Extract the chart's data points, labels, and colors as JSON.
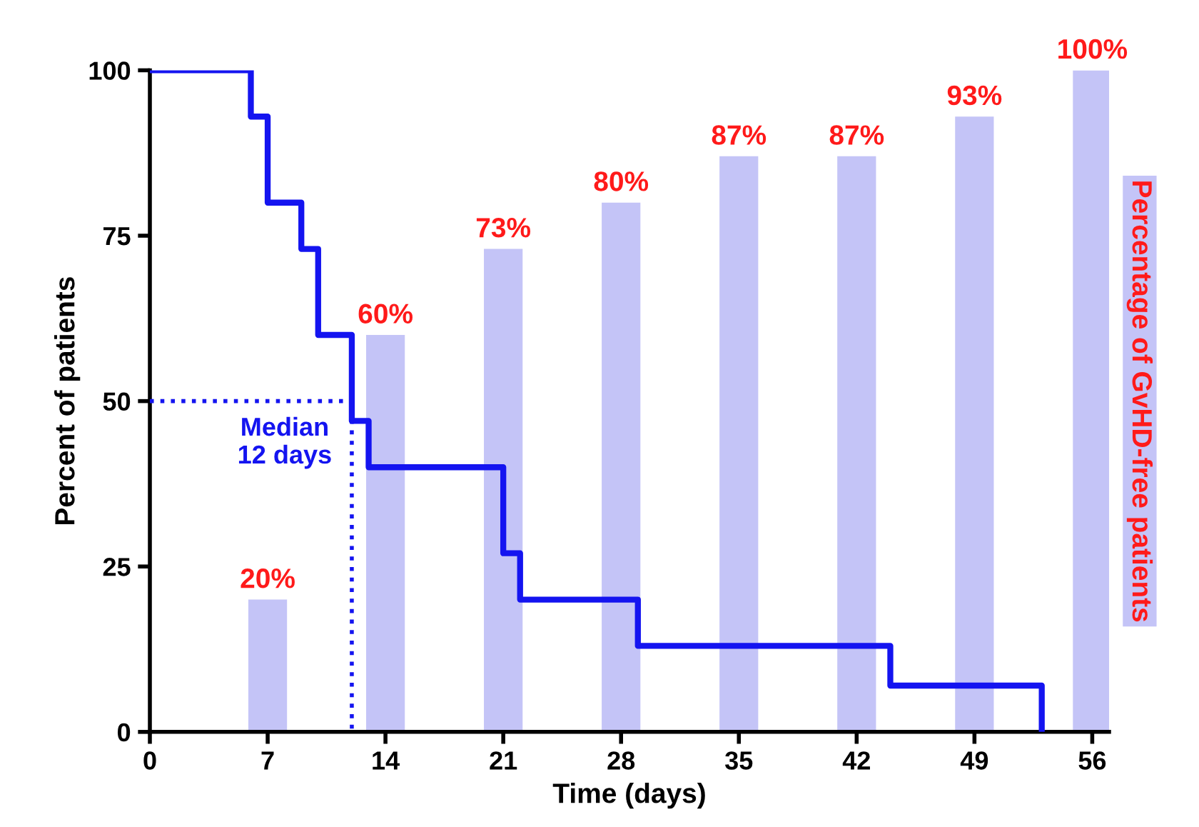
{
  "chart_data": {
    "type": "step",
    "xlabel": "Time (days)",
    "ylabel": "Percent of patients",
    "y2label": "Percentage of GvHD-free patients",
    "xlim": [
      0,
      57
    ],
    "xticks": [
      0,
      7,
      14,
      21,
      28,
      35,
      42,
      49,
      56
    ],
    "ylim": [
      0,
      100
    ],
    "yticks": [
      0,
      25,
      50,
      75,
      100
    ],
    "grid": false,
    "legend": false,
    "line_style": "solid",
    "series": [
      {
        "type": "bar",
        "color": "#c4c4f7",
        "x": [
          7,
          14,
          21,
          28,
          35,
          42,
          49,
          56
        ],
        "values": [
          20,
          60,
          73,
          80,
          87,
          87,
          93,
          100
        ],
        "value_labels": [
          "20%",
          "60%",
          "73%",
          "80%",
          "87%",
          "87%",
          "93%",
          "100%"
        ]
      },
      {
        "color": "#1414f0",
        "x": [
          0,
          6,
          7,
          9,
          10,
          12,
          13,
          21,
          22,
          29,
          44,
          53
        ],
        "values": [
          100,
          93,
          80,
          73,
          60,
          47,
          40,
          27,
          20,
          13,
          7,
          0
        ]
      },
      {
        "type": "line",
        "color": "#1414f0",
        "line_style": "dotted",
        "x": [
          0,
          12,
          12
        ],
        "values": [
          50,
          50,
          0
        ]
      }
    ],
    "annotations": [
      {
        "text": "Median\n12 days",
        "x": 12,
        "y": 50
      }
    ]
  }
}
